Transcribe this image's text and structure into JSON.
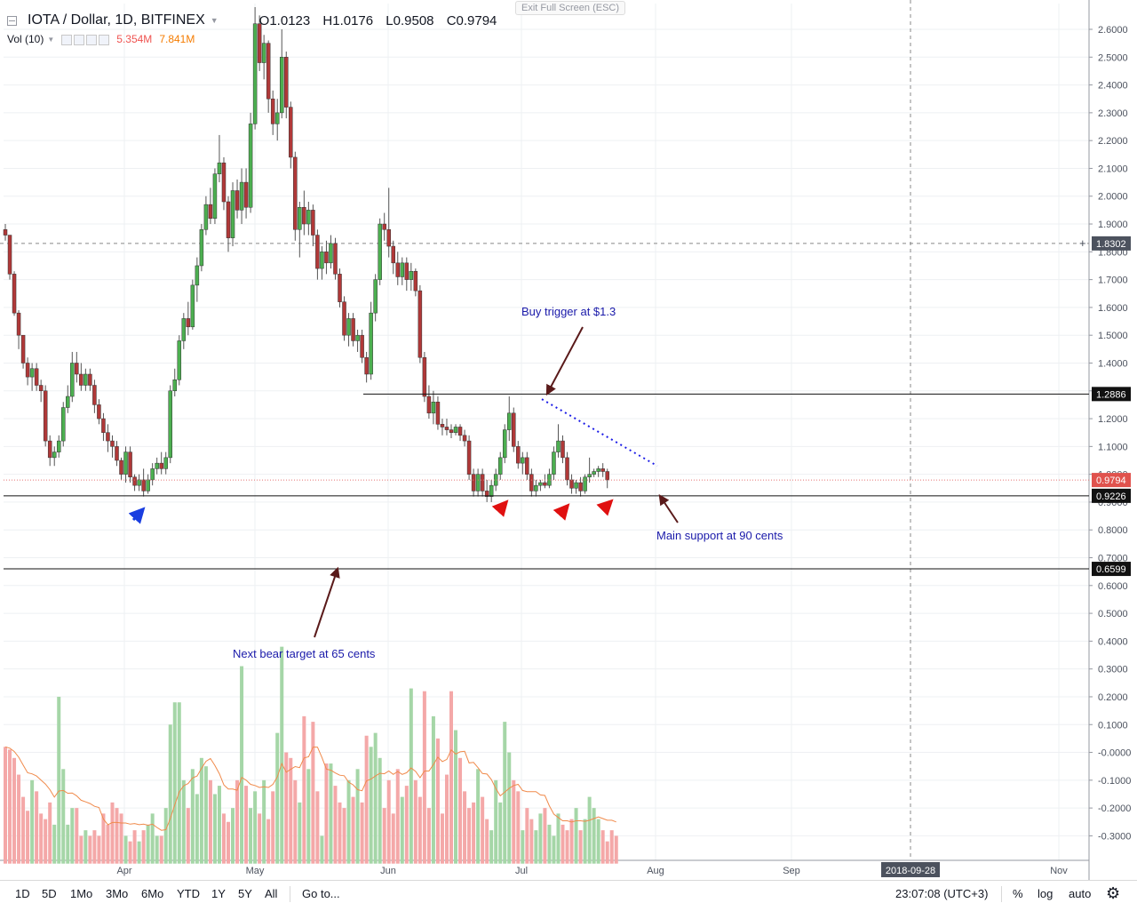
{
  "header": {
    "symbol": "IOTA / Dollar, 1D, BITFINEX",
    "open": "O1.0123",
    "high": "H1.0176",
    "low": "L0.9508",
    "close": "C0.9794",
    "volume_indicator": "Vol (10)",
    "volume_value": "5.354M",
    "volume_ma": "7.841M"
  },
  "exit_fullscreen": "Exit Full Screen (ESC)",
  "annotations": {
    "buy_trigger": "Buy trigger at $1.3",
    "main_support": "Main support at 90 cents",
    "bear_target": "Next bear target at 65 cents"
  },
  "toolbar": {
    "ranges": [
      "1D",
      "5D",
      "1Mo",
      "3Mo",
      "6Mo",
      "YTD",
      "1Y",
      "5Y",
      "All"
    ],
    "goto": "Go to...",
    "time": "23:07:08 (UTC+3)",
    "percent": "%",
    "log": "log",
    "auto": "auto"
  },
  "colors": {
    "up": "#4caf50",
    "down": "#b03838",
    "vol_up": "#a5d6a7",
    "vol_down": "#f4a8a8",
    "vol_ma": "#f08a4b",
    "annotation_text": "#1a1aaa",
    "trendline": "#1a1ae6",
    "arrow_blue": "#1a3ee0",
    "arrow_red": "#e01010",
    "arrow_brown": "#5a1a1a"
  },
  "chart_data": {
    "type": "candlestick",
    "title": "IOTA / Dollar, 1D, BITFINEX",
    "y_ticks": [
      "2.6000",
      "2.5000",
      "2.4000",
      "2.3000",
      "2.2000",
      "2.1000",
      "2.0000",
      "1.9000",
      "1.8000",
      "1.7000",
      "1.6000",
      "1.5000",
      "1.4000",
      "1.3000",
      "1.2000",
      "1.1000",
      "1.0000",
      "0.9000",
      "0.8000",
      "0.7000",
      "0.6000",
      "0.5000",
      "0.4000",
      "0.3000",
      "0.2000",
      "0.1000",
      "-0.0000",
      "-0.1000",
      "-0.2000",
      "-0.3000"
    ],
    "x_ticks": [
      "Apr",
      "May",
      "Jun",
      "Jul",
      "Aug",
      "Sep",
      "Nov"
    ],
    "crosshair_date": "2018-09-28",
    "crosshair_price": "1.8302",
    "last_price": "0.9794",
    "levels": [
      {
        "label": "1.2886",
        "value": 1.2886
      },
      {
        "label": "0.9226",
        "value": 0.9226
      },
      {
        "label": "0.6599",
        "value": 0.6599
      }
    ],
    "trendline": {
      "from": {
        "date": "2018-07-02",
        "value": 1.27
      },
      "to": {
        "date": "2018-07-31",
        "value": 1.03
      }
    },
    "candles": [
      [
        1.88,
        1.9,
        1.84,
        1.86
      ],
      [
        1.86,
        1.86,
        1.7,
        1.72
      ],
      [
        1.72,
        1.73,
        1.57,
        1.58
      ],
      [
        1.58,
        1.59,
        1.45,
        1.5
      ],
      [
        1.5,
        1.5,
        1.38,
        1.4
      ],
      [
        1.4,
        1.42,
        1.32,
        1.35
      ],
      [
        1.35,
        1.4,
        1.3,
        1.38
      ],
      [
        1.38,
        1.4,
        1.3,
        1.32
      ],
      [
        1.32,
        1.34,
        1.26,
        1.3
      ],
      [
        1.3,
        1.32,
        1.1,
        1.12
      ],
      [
        1.12,
        1.14,
        1.03,
        1.06
      ],
      [
        1.06,
        1.1,
        1.03,
        1.08
      ],
      [
        1.08,
        1.14,
        1.06,
        1.12
      ],
      [
        1.12,
        1.26,
        1.1,
        1.24
      ],
      [
        1.24,
        1.32,
        1.22,
        1.28
      ],
      [
        1.28,
        1.44,
        1.26,
        1.4
      ],
      [
        1.4,
        1.44,
        1.33,
        1.36
      ],
      [
        1.36,
        1.4,
        1.3,
        1.32
      ],
      [
        1.32,
        1.38,
        1.3,
        1.36
      ],
      [
        1.36,
        1.38,
        1.3,
        1.32
      ],
      [
        1.32,
        1.34,
        1.22,
        1.25
      ],
      [
        1.25,
        1.27,
        1.18,
        1.2
      ],
      [
        1.2,
        1.22,
        1.12,
        1.15
      ],
      [
        1.15,
        1.18,
        1.08,
        1.12
      ],
      [
        1.12,
        1.14,
        1.06,
        1.1
      ],
      [
        1.1,
        1.12,
        1.03,
        1.05
      ],
      [
        1.05,
        1.06,
        0.98,
        1.0
      ],
      [
        1.0,
        1.1,
        0.97,
        1.08
      ],
      [
        1.08,
        1.1,
        0.97,
        0.99
      ],
      [
        0.99,
        1.0,
        0.94,
        0.96
      ],
      [
        0.96,
        1.0,
        0.94,
        0.98
      ],
      [
        0.98,
        1.02,
        0.92,
        0.94
      ],
      [
        0.94,
        1.0,
        0.93,
        0.98
      ],
      [
        0.98,
        1.04,
        0.96,
        1.02
      ],
      [
        1.02,
        1.06,
        1.0,
        1.04
      ],
      [
        1.04,
        1.08,
        1.0,
        1.02
      ],
      [
        1.02,
        1.08,
        1.0,
        1.06
      ],
      [
        1.06,
        1.32,
        1.04,
        1.3
      ],
      [
        1.3,
        1.38,
        1.28,
        1.34
      ],
      [
        1.34,
        1.5,
        1.32,
        1.48
      ],
      [
        1.48,
        1.58,
        1.45,
        1.56
      ],
      [
        1.56,
        1.62,
        1.5,
        1.53
      ],
      [
        1.53,
        1.7,
        1.52,
        1.68
      ],
      [
        1.68,
        1.78,
        1.62,
        1.75
      ],
      [
        1.75,
        1.9,
        1.73,
        1.88
      ],
      [
        1.88,
        2.0,
        1.86,
        1.97
      ],
      [
        1.97,
        2.03,
        1.9,
        1.92
      ],
      [
        1.92,
        2.1,
        1.9,
        2.08
      ],
      [
        2.08,
        2.22,
        2.05,
        2.12
      ],
      [
        2.12,
        2.14,
        1.95,
        1.98
      ],
      [
        1.98,
        2.0,
        1.8,
        1.85
      ],
      [
        1.85,
        2.05,
        1.82,
        2.02
      ],
      [
        2.02,
        2.06,
        1.92,
        1.95
      ],
      [
        1.95,
        2.1,
        1.9,
        2.05
      ],
      [
        2.05,
        2.1,
        1.92,
        1.96
      ],
      [
        1.96,
        2.3,
        1.94,
        2.26
      ],
      [
        2.26,
        2.68,
        2.24,
        2.62
      ],
      [
        2.62,
        2.65,
        2.45,
        2.48
      ],
      [
        2.48,
        2.58,
        2.42,
        2.55
      ],
      [
        2.55,
        2.56,
        2.3,
        2.35
      ],
      [
        2.35,
        2.38,
        2.22,
        2.26
      ],
      [
        2.26,
        2.35,
        2.2,
        2.3
      ],
      [
        2.3,
        2.6,
        2.28,
        2.5
      ],
      [
        2.5,
        2.52,
        2.28,
        2.32
      ],
      [
        2.32,
        2.34,
        2.1,
        2.14
      ],
      [
        2.14,
        2.16,
        1.84,
        1.88
      ],
      [
        1.88,
        1.98,
        1.78,
        1.96
      ],
      [
        1.96,
        2.02,
        1.86,
        1.9
      ],
      [
        1.9,
        1.98,
        1.86,
        1.95
      ],
      [
        1.95,
        1.97,
        1.82,
        1.86
      ],
      [
        1.86,
        1.88,
        1.7,
        1.74
      ],
      [
        1.74,
        1.82,
        1.7,
        1.8
      ],
      [
        1.8,
        1.84,
        1.72,
        1.76
      ],
      [
        1.76,
        1.86,
        1.74,
        1.83
      ],
      [
        1.83,
        1.85,
        1.7,
        1.72
      ],
      [
        1.72,
        1.74,
        1.6,
        1.62
      ],
      [
        1.62,
        1.64,
        1.48,
        1.5
      ],
      [
        1.5,
        1.58,
        1.46,
        1.56
      ],
      [
        1.56,
        1.58,
        1.46,
        1.48
      ],
      [
        1.48,
        1.52,
        1.44,
        1.5
      ],
      [
        1.5,
        1.52,
        1.4,
        1.42
      ],
      [
        1.42,
        1.44,
        1.33,
        1.36
      ],
      [
        1.36,
        1.62,
        1.34,
        1.58
      ],
      [
        1.58,
        1.72,
        1.55,
        1.7
      ],
      [
        1.7,
        1.92,
        1.68,
        1.9
      ],
      [
        1.9,
        1.94,
        1.84,
        1.88
      ],
      [
        1.88,
        2.03,
        1.78,
        1.82
      ],
      [
        1.82,
        1.84,
        1.72,
        1.76
      ],
      [
        1.76,
        1.8,
        1.68,
        1.71
      ],
      [
        1.71,
        1.78,
        1.68,
        1.76
      ],
      [
        1.76,
        1.78,
        1.66,
        1.7
      ],
      [
        1.7,
        1.76,
        1.66,
        1.73
      ],
      [
        1.73,
        1.74,
        1.64,
        1.66
      ],
      [
        1.66,
        1.68,
        1.4,
        1.42
      ],
      [
        1.42,
        1.44,
        1.26,
        1.28
      ],
      [
        1.28,
        1.32,
        1.2,
        1.22
      ],
      [
        1.22,
        1.3,
        1.18,
        1.26
      ],
      [
        1.26,
        1.28,
        1.16,
        1.18
      ],
      [
        1.18,
        1.2,
        1.14,
        1.17
      ],
      [
        1.17,
        1.2,
        1.14,
        1.16
      ],
      [
        1.16,
        1.18,
        1.13,
        1.15
      ],
      [
        1.15,
        1.18,
        1.14,
        1.17
      ],
      [
        1.17,
        1.18,
        1.12,
        1.14
      ],
      [
        1.14,
        1.16,
        1.1,
        1.12
      ],
      [
        1.12,
        1.14,
        0.98,
        1.0
      ],
      [
        1.0,
        1.02,
        0.92,
        0.94
      ],
      [
        0.94,
        1.02,
        0.92,
        1.0
      ],
      [
        1.0,
        1.02,
        0.92,
        0.94
      ],
      [
        0.94,
        0.98,
        0.9,
        0.92
      ],
      [
        0.92,
        0.98,
        0.9,
        0.96
      ],
      [
        0.96,
        1.02,
        0.94,
        1.0
      ],
      [
        1.0,
        1.08,
        0.98,
        1.06
      ],
      [
        1.06,
        1.18,
        1.04,
        1.16
      ],
      [
        1.16,
        1.28,
        1.12,
        1.22
      ],
      [
        1.22,
        1.24,
        1.08,
        1.1
      ],
      [
        1.1,
        1.12,
        1.02,
        1.04
      ],
      [
        1.04,
        1.08,
        1.0,
        1.06
      ],
      [
        1.06,
        1.08,
        0.98,
        1.0
      ],
      [
        1.0,
        1.02,
        0.92,
        0.94
      ],
      [
        0.94,
        0.98,
        0.92,
        0.96
      ],
      [
        0.96,
        0.98,
        0.94,
        0.97
      ],
      [
        0.97,
        1.0,
        0.95,
        0.96
      ],
      [
        0.96,
        1.02,
        0.95,
        1.0
      ],
      [
        1.0,
        1.1,
        0.98,
        1.08
      ],
      [
        1.08,
        1.18,
        1.06,
        1.12
      ],
      [
        1.12,
        1.14,
        1.04,
        1.06
      ],
      [
        1.06,
        1.08,
        0.96,
        0.98
      ],
      [
        0.98,
        1.0,
        0.93,
        0.95
      ],
      [
        0.95,
        0.98,
        0.93,
        0.97
      ],
      [
        0.97,
        0.99,
        0.92,
        0.94
      ],
      [
        0.94,
        1.0,
        0.93,
        0.99
      ],
      [
        0.99,
        1.06,
        0.97,
        1.0
      ],
      [
        1.0,
        1.02,
        0.99,
        1.01
      ],
      [
        1.01,
        1.03,
        0.99,
        1.02
      ],
      [
        1.02,
        1.04,
        0.99,
        1.01
      ],
      [
        1.01,
        1.02,
        0.95,
        0.98
      ]
    ],
    "volume": [
      0.02,
      0.01,
      -0.02,
      -0.08,
      -0.16,
      -0.21,
      -0.1,
      -0.14,
      -0.22,
      -0.24,
      -0.18,
      -0.26,
      0.2,
      -0.06,
      -0.26,
      -0.2,
      -0.2,
      -0.3,
      -0.28,
      -0.3,
      -0.28,
      -0.3,
      -0.22,
      -0.26,
      -0.18,
      -0.2,
      -0.22,
      -0.3,
      -0.32,
      -0.28,
      -0.32,
      -0.28,
      -0.26,
      -0.22,
      -0.3,
      -0.3,
      -0.2,
      0.1,
      0.18,
      0.18,
      -0.1,
      -0.2,
      -0.06,
      -0.15,
      -0.02,
      -0.05,
      -0.1,
      -0.15,
      -0.12,
      -0.22,
      -0.25,
      -0.2,
      -0.1,
      0.31,
      -0.12,
      -0.2,
      -0.14,
      -0.22,
      -0.1,
      -0.24,
      -0.14,
      0.07,
      0.38,
      0.0,
      -0.02,
      -0.1,
      -0.18,
      0.13,
      -0.06,
      0.11,
      -0.14,
      -0.3,
      -0.04,
      -0.04,
      -0.12,
      -0.18,
      -0.2,
      -0.1,
      -0.16,
      -0.06,
      -0.18,
      0.06,
      0.02,
      0.07,
      -0.02,
      -0.2,
      -0.1,
      -0.22,
      -0.06,
      -0.16,
      -0.12,
      0.23,
      -0.1,
      -0.16,
      0.22,
      -0.2,
      0.13,
      0.05,
      -0.22,
      -0.08,
      0.22,
      0.08,
      -0.02,
      -0.14,
      -0.2,
      -0.18,
      -0.06,
      -0.16,
      -0.24,
      -0.28,
      -0.1,
      -0.18,
      0.11,
      0.0,
      -0.1,
      -0.14,
      -0.28,
      -0.2,
      -0.24,
      -0.28,
      -0.22,
      -0.2,
      -0.26,
      -0.3,
      -0.22,
      -0.26,
      -0.28,
      -0.24,
      -0.2,
      -0.28,
      -0.24,
      -0.16,
      -0.2,
      -0.24,
      -0.28,
      -0.32,
      -0.28,
      -0.3
    ]
  }
}
